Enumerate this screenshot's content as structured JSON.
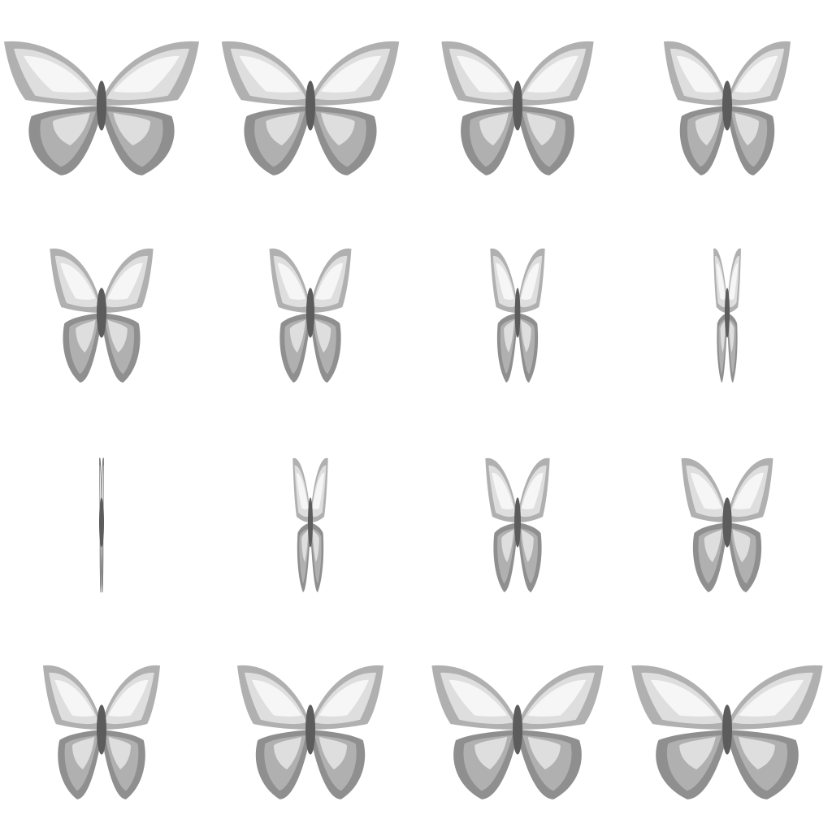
{
  "sprite_sheet": {
    "subject": "butterfly-icon",
    "animation": "wing-flap",
    "grid": {
      "columns": 4,
      "rows": 4
    },
    "colors": {
      "background": "#ffffff",
      "wing_outline": "#6f6f6f",
      "wing_dark": "#8f8f8f",
      "wing_mid": "#b0b0b0",
      "wing_light": "#dedede",
      "wing_highlight": "#f6f6f6",
      "body": "#5c5c5c"
    },
    "frames": [
      {
        "wing_open": 1.0
      },
      {
        "wing_open": 0.91
      },
      {
        "wing_open": 0.78
      },
      {
        "wing_open": 0.65
      },
      {
        "wing_open": 0.53
      },
      {
        "wing_open": 0.42
      },
      {
        "wing_open": 0.28
      },
      {
        "wing_open": 0.14
      },
      {
        "wing_open": 0.02
      },
      {
        "wing_open": 0.18
      },
      {
        "wing_open": 0.33
      },
      {
        "wing_open": 0.47
      },
      {
        "wing_open": 0.6
      },
      {
        "wing_open": 0.75
      },
      {
        "wing_open": 0.88
      },
      {
        "wing_open": 0.98
      }
    ]
  }
}
